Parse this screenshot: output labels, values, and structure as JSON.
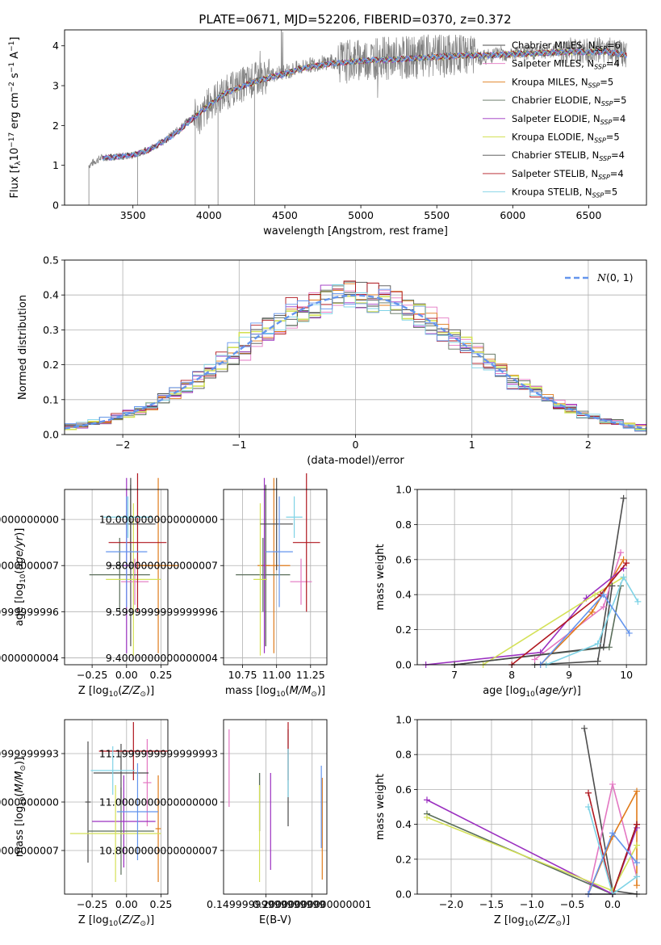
{
  "figure_title": "PLATE=0671, MJD=52206, FIBERID=0370, z=0.372",
  "series_styles": [
    {
      "name": "Chabrier MILES",
      "nssp": "6",
      "color": "#4d4d4d"
    },
    {
      "name": "Salpeter MILES",
      "nssp": "4",
      "color": "#e377c2"
    },
    {
      "name": "Kroupa MILES",
      "nssp": "5",
      "color": "#e07b1a"
    },
    {
      "name": "Chabrier ELODIE",
      "nssp": "5",
      "color": "#5a6e5a"
    },
    {
      "name": "Salpeter ELODIE",
      "nssp": "4",
      "color": "#9b30c0"
    },
    {
      "name": "Kroupa ELODIE",
      "nssp": "5",
      "color": "#d4e157"
    },
    {
      "name": "Chabrier STELIB",
      "nssp": "4",
      "color": "#4a4a4a"
    },
    {
      "name": "Salpeter STELIB",
      "nssp": "4",
      "color": "#b0171f"
    },
    {
      "name": "Kroupa STELIB",
      "nssp": "5",
      "color": "#7fd3e6"
    },
    {
      "name": "",
      "nssp": "",
      "color": "#6495ed"
    }
  ],
  "chart_data": [
    {
      "id": "spectrum",
      "type": "line",
      "title": "PLATE=0671, MJD=52206, FIBERID=0370, z=0.372",
      "xlabel": "wavelength [Angstrom, rest frame]",
      "ylabel": "Flux [f_λ 10^-17 erg cm^-2 s^-1 A^-1]",
      "xlim": [
        3050,
        6880
      ],
      "ylim": [
        0,
        4.4
      ],
      "xticks": [
        3500,
        4000,
        4500,
        5000,
        5500,
        6000,
        6500
      ],
      "yticks": [
        0,
        1,
        2,
        3,
        4
      ],
      "legend_position": "top-right",
      "observed": {
        "color": "#808080",
        "x": [
          3210,
          3250,
          3300,
          3400,
          3500,
          3600,
          3700,
          3800,
          3900,
          3950,
          4000,
          4100,
          4200,
          4300,
          4400,
          4500,
          4600,
          4700,
          4800,
          4900,
          5000,
          5100,
          5200,
          5300,
          5400,
          5500,
          5600,
          5700,
          5800,
          5900,
          6000,
          6100,
          6200,
          6300,
          6400,
          6500,
          6600,
          6700,
          6750
        ],
        "y": [
          1.0,
          1.1,
          1.2,
          1.22,
          1.25,
          1.4,
          1.6,
          1.9,
          2.25,
          2.2,
          2.55,
          2.8,
          3.0,
          3.15,
          3.25,
          3.35,
          3.45,
          3.55,
          3.6,
          3.6,
          3.65,
          3.7,
          3.68,
          3.7,
          3.72,
          3.75,
          3.75,
          3.8,
          3.7,
          3.8,
          3.8,
          3.82,
          3.85,
          3.9,
          3.9,
          3.85,
          3.9,
          3.8,
          3.75
        ]
      },
      "models": {
        "x": [
          3300,
          3400,
          3500,
          3600,
          3700,
          3800,
          3900,
          4000,
          4100,
          4200,
          4300,
          4400,
          4500,
          4600,
          4700,
          4800,
          4900,
          5000,
          5100,
          5200,
          5300,
          5400,
          5500,
          5600,
          5700,
          5800,
          5900,
          6000,
          6100,
          6200,
          6300,
          6400,
          6500,
          6600,
          6700,
          6750
        ],
        "y": [
          1.18,
          1.22,
          1.25,
          1.38,
          1.6,
          1.85,
          2.2,
          2.5,
          2.8,
          2.95,
          3.1,
          3.2,
          3.3,
          3.42,
          3.5,
          3.55,
          3.58,
          3.62,
          3.65,
          3.65,
          3.68,
          3.7,
          3.72,
          3.74,
          3.76,
          3.75,
          3.78,
          3.79,
          3.8,
          3.82,
          3.84,
          3.85,
          3.84,
          3.86,
          3.8,
          3.76
        ]
      }
    },
    {
      "id": "residuals",
      "type": "bar",
      "xlabel": "(data-model)/error",
      "ylabel": "Normed distribution",
      "xlim": [
        -2.5,
        2.5
      ],
      "ylim": [
        0,
        0.5
      ],
      "xticks": [
        -2,
        -1,
        0,
        1,
        2
      ],
      "yticks": [
        0.0,
        0.1,
        0.2,
        0.3,
        0.4,
        0.5
      ],
      "legend_label": "N(0,1)",
      "legend_position": "top-right",
      "bin_width": 0.1,
      "bins_start": -2.5
    },
    {
      "id": "age_vs_Z",
      "type": "scatter",
      "xlabel": "Z [log10(Z/Z⊙)]",
      "ylabel": "age [log10(age/yr)]",
      "xlim": [
        -0.45,
        0.3
      ],
      "ylim": [
        9.37,
        10.13
      ],
      "xticks": [
        -0.25,
        0.0,
        0.25
      ],
      "yticks": [
        9.4,
        9.6,
        9.8,
        10.0
      ],
      "points": [
        {
          "x": 0.03,
          "xerr": 0.16,
          "y": 9.8,
          "yerr": 0.35,
          "s": 0
        },
        {
          "x": 0.06,
          "xerr": 0.1,
          "y": 9.73,
          "yerr": 0.1,
          "s": 1
        },
        {
          "x": 0.23,
          "xerr": 0.15,
          "y": 9.8,
          "yerr": 0.38,
          "s": 2
        },
        {
          "x": -0.05,
          "xerr": 0.22,
          "y": 9.76,
          "yerr": 0.16,
          "s": 3
        },
        {
          "x": 0.0,
          "xerr": 0.02,
          "y": 9.8,
          "yerr": 0.38,
          "s": 4
        },
        {
          "x": 0.05,
          "xerr": 0.2,
          "y": 9.74,
          "yerr": 0.33,
          "s": 5
        },
        {
          "x": 0.03,
          "xerr": 0.18,
          "y": 9.98,
          "yerr": 0.2,
          "s": 6
        },
        {
          "x": 0.08,
          "xerr": 0.21,
          "y": 9.9,
          "yerr": 0.3,
          "s": 7
        },
        {
          "x": 0.01,
          "xerr": 0.18,
          "y": 10.01,
          "yerr": 0.09,
          "s": 8
        },
        {
          "x": 0.0,
          "xerr": 0.15,
          "y": 9.86,
          "yerr": 0.24,
          "s": 9
        }
      ]
    },
    {
      "id": "age_vs_mass",
      "type": "scatter",
      "xlabel": "mass [log10(M/M⊙)]",
      "xlim": [
        10.61,
        11.37
      ],
      "ylim": [
        9.37,
        10.13
      ],
      "xticks": [
        10.75,
        11.0,
        11.25
      ],
      "yticks": [
        9.4,
        9.6,
        9.8,
        10.0
      ],
      "points": [
        {
          "x": 10.92,
          "xerr": 0.03,
          "y": 9.8,
          "yerr": 0.35,
          "s": 0
        },
        {
          "x": 11.18,
          "xerr": 0.08,
          "y": 9.73,
          "yerr": 0.1,
          "s": 1
        },
        {
          "x": 10.98,
          "xerr": 0.12,
          "y": 9.8,
          "yerr": 0.38,
          "s": 2
        },
        {
          "x": 10.9,
          "xerr": 0.2,
          "y": 9.76,
          "yerr": 0.16,
          "s": 3
        },
        {
          "x": 10.91,
          "xerr": 0.01,
          "y": 9.8,
          "yerr": 0.38,
          "s": 4
        },
        {
          "x": 10.88,
          "xerr": 0.05,
          "y": 9.74,
          "yerr": 0.33,
          "s": 5
        },
        {
          "x": 11.0,
          "xerr": 0.12,
          "y": 9.98,
          "yerr": 0.2,
          "s": 6
        },
        {
          "x": 11.22,
          "xerr": 0.1,
          "y": 9.9,
          "yerr": 0.3,
          "s": 7
        },
        {
          "x": 11.13,
          "xerr": 0.06,
          "y": 10.01,
          "yerr": 0.09,
          "s": 8
        },
        {
          "x": 11.02,
          "xerr": 0.1,
          "y": 9.86,
          "yerr": 0.24,
          "s": 9
        }
      ]
    },
    {
      "id": "massweight_vs_age",
      "type": "line",
      "xlabel": "age [log10(age/yr)]",
      "ylabel": "mass weight",
      "xlim": [
        6.35,
        10.35
      ],
      "ylim": [
        0,
        1
      ],
      "xticks": [
        7,
        8,
        9,
        10
      ],
      "yticks": [
        0.0,
        0.2,
        0.4,
        0.6,
        0.8,
        1.0
      ],
      "series": [
        {
          "s": 0,
          "x": [
            8.4,
            9.5,
            9.95
          ],
          "y": [
            0.0,
            0.02,
            0.95
          ]
        },
        {
          "s": 1,
          "x": [
            8.4,
            9.6,
            9.9
          ],
          "y": [
            0.03,
            0.33,
            0.64
          ]
        },
        {
          "s": 2,
          "x": [
            8.5,
            9.4,
            9.95
          ],
          "y": [
            0.0,
            0.3,
            0.6
          ]
        },
        {
          "s": 3,
          "x": [
            7.0,
            9.7,
            9.9
          ],
          "y": [
            0.0,
            0.1,
            0.45
          ]
        },
        {
          "s": 4,
          "x": [
            6.5,
            8.5,
            9.3,
            9.95
          ],
          "y": [
            0.0,
            0.07,
            0.38,
            0.55
          ]
        },
        {
          "s": 5,
          "x": [
            7.5,
            9.45,
            9.95
          ],
          "y": [
            0.0,
            0.4,
            0.5
          ]
        },
        {
          "s": 6,
          "x": [
            7.0,
            9.6,
            9.75
          ],
          "y": [
            0.0,
            0.1,
            0.45
          ]
        },
        {
          "s": 7,
          "x": [
            8.0,
            9.55,
            10.0
          ],
          "y": [
            0.0,
            0.4,
            0.58
          ]
        },
        {
          "s": 8,
          "x": [
            8.6,
            9.5,
            9.95,
            10.2
          ],
          "y": [
            0.0,
            0.12,
            0.5,
            0.36
          ]
        },
        {
          "s": 9,
          "x": [
            8.5,
            9.6,
            10.05
          ],
          "y": [
            0.0,
            0.4,
            0.18
          ]
        }
      ]
    },
    {
      "id": "mass_vs_Z",
      "type": "scatter",
      "xlabel": "Z [log10(Z/Z⊙)]",
      "ylabel": "mass [log10(M/M⊙)]",
      "xlim": [
        -0.45,
        0.3
      ],
      "ylim": [
        10.62,
        11.34
      ],
      "xticks": [
        -0.25,
        0.0,
        0.25
      ],
      "yticks": [
        10.8,
        11.0,
        11.2
      ],
      "points": [
        {
          "x": -0.28,
          "xerr": 0.02,
          "y": 11.0,
          "yerr": 0.25,
          "s": 0
        },
        {
          "x": 0.15,
          "xerr": 0.03,
          "y": 11.08,
          "yerr": 0.18,
          "s": 1
        },
        {
          "x": 0.23,
          "xerr": 0.02,
          "y": 10.89,
          "yerr": 0.22,
          "s": 2
        },
        {
          "x": -0.04,
          "xerr": 0.24,
          "y": 10.88,
          "yerr": 0.18,
          "s": 3
        },
        {
          "x": -0.02,
          "xerr": 0.23,
          "y": 10.92,
          "yerr": 0.19,
          "s": 4
        },
        {
          "x": -0.08,
          "xerr": 0.33,
          "y": 10.87,
          "yerr": 0.2,
          "s": 5
        },
        {
          "x": -0.04,
          "xerr": 0.2,
          "y": 11.12,
          "yerr": 0.12,
          "s": 6
        },
        {
          "x": 0.05,
          "xerr": 0.25,
          "y": 11.21,
          "yerr": 0.12,
          "s": 7
        },
        {
          "x": -0.1,
          "xerr": 0.16,
          "y": 11.13,
          "yerr": 0.1,
          "s": 8
        },
        {
          "x": 0.08,
          "xerr": 0.15,
          "y": 10.96,
          "yerr": 0.2,
          "s": 9
        }
      ]
    },
    {
      "id": "mass_vs_EBV",
      "type": "scatter",
      "xlabel": "E(B-V)",
      "xlim": [
        0.104,
        0.216
      ],
      "ylim": [
        10.62,
        11.34
      ],
      "xticks": [
        0.15,
        0.2
      ],
      "yticks": [
        10.8,
        11.0,
        11.2
      ],
      "points": [
        {
          "x": 0.143,
          "y": 11.0,
          "yerr": 0.12,
          "s": 0
        },
        {
          "x": 0.11,
          "y": 11.14,
          "yerr": 0.16,
          "s": 1
        },
        {
          "x": 0.211,
          "y": 10.89,
          "yerr": 0.21,
          "s": 2
        },
        {
          "x": 0.143,
          "y": 11.0,
          "yerr": 0.12,
          "s": 3
        },
        {
          "x": 0.155,
          "y": 10.92,
          "yerr": 0.2,
          "s": 4
        },
        {
          "x": 0.143,
          "y": 10.87,
          "yerr": 0.2,
          "s": 5
        },
        {
          "x": 0.174,
          "y": 11.1,
          "yerr": 0.2,
          "s": 6
        },
        {
          "x": 0.174,
          "y": 11.21,
          "yerr": 0.12,
          "s": 7
        },
        {
          "x": 0.174,
          "y": 11.12,
          "yerr": 0.1,
          "s": 8
        },
        {
          "x": 0.21,
          "y": 10.98,
          "yerr": 0.17,
          "s": 9
        }
      ]
    },
    {
      "id": "massweight_vs_Z",
      "type": "line",
      "xlabel": "Z [log10(Z/Z⊙)]",
      "ylabel": "mass weight",
      "xlim": [
        -2.42,
        0.42
      ],
      "ylim": [
        0,
        1
      ],
      "xticks": [
        -2.0,
        -1.5,
        -1.0,
        -0.5,
        0.0
      ],
      "yticks": [
        0.0,
        0.2,
        0.4,
        0.6,
        0.8,
        1.0
      ],
      "series": [
        {
          "s": 0,
          "x": [
            -0.35,
            0.0,
            0.3
          ],
          "y": [
            0.95,
            0.02,
            0.0
          ]
        },
        {
          "s": 1,
          "x": [
            -0.3,
            0.0,
            0.3
          ],
          "y": [
            0.0,
            0.63,
            0.1
          ]
        },
        {
          "s": 2,
          "x": [
            -0.3,
            0.0,
            0.3,
            0.3
          ],
          "y": [
            0.0,
            0.33,
            0.59,
            0.05
          ]
        },
        {
          "s": 3,
          "x": [
            -2.3,
            0.0,
            0.3
          ],
          "y": [
            0.46,
            0.0,
            0.4
          ]
        },
        {
          "s": 4,
          "x": [
            -2.3,
            0.0,
            0.3
          ],
          "y": [
            0.54,
            0.0,
            0.38
          ]
        },
        {
          "s": 5,
          "x": [
            -2.3,
            0.0,
            0.3
          ],
          "y": [
            0.44,
            0.02,
            0.28
          ]
        },
        {
          "s": 6,
          "x": [
            -0.3,
            0.0,
            0.3
          ],
          "y": [
            0.0,
            0.0,
            0.4
          ]
        },
        {
          "s": 7,
          "x": [
            -0.3,
            0.0,
            0.3
          ],
          "y": [
            0.58,
            0.0,
            0.4
          ]
        },
        {
          "s": 8,
          "x": [
            -0.3,
            0.0,
            0.3
          ],
          "y": [
            0.5,
            0.0,
            0.1
          ]
        },
        {
          "s": 9,
          "x": [
            -0.3,
            0.0,
            0.3
          ],
          "y": [
            0.0,
            0.35,
            0.18
          ]
        }
      ]
    }
  ]
}
